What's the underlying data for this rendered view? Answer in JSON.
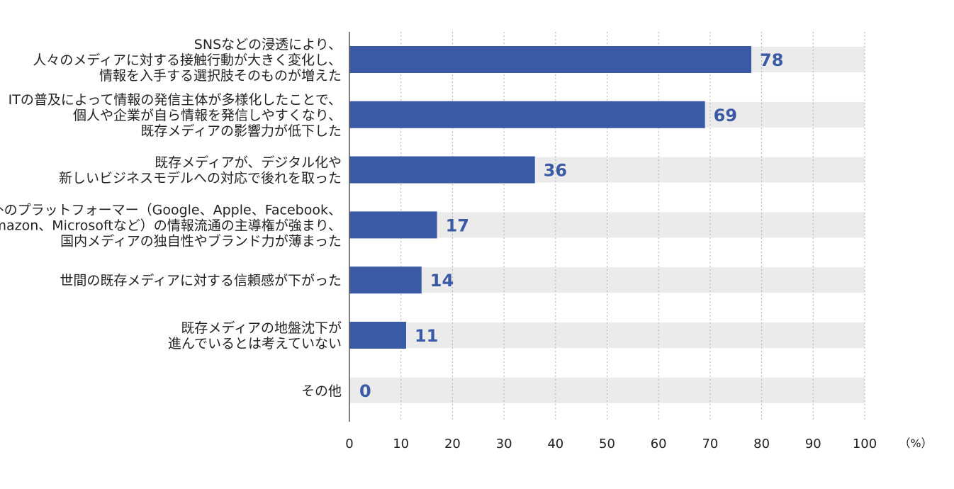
{
  "chart_data": {
    "type": "bar",
    "orientation": "horizontal",
    "categories": [
      [
        "SNSなどの浸透により、",
        "人々のメディアに対する接触行動が大きく変化し、",
        "情報を入手する選択肢そのものが増えた"
      ],
      [
        "ITの普及によって情報の発信主体が多様化したことで、",
        "個人や企業が自ら情報を発信しやすくなり、",
        "既存メディアの影響力が低下した"
      ],
      [
        "既存メディアが、デジタル化や",
        "新しいビジネスモデルへの対応で後れを取った"
      ],
      [
        "海外のプラットフォーマー（Google、Apple、Facebook、",
        "Amazon、Microsoftなど）の情報流通の主導権が強まり、",
        "国内メディアの独自性やブランド力が薄まった"
      ],
      [
        "世間の既存メディアに対する信頼感が下がった"
      ],
      [
        "既存メディアの地盤沈下が",
        "進んでいるとは考えていない"
      ],
      [
        "その他"
      ]
    ],
    "values": [
      78,
      69,
      36,
      17,
      14,
      11,
      0
    ],
    "xlim": [
      0,
      100
    ],
    "xticks": [
      "0",
      "10",
      "20",
      "30",
      "40",
      "50",
      "60",
      "70",
      "80",
      "90",
      "100"
    ],
    "unit": "（%）",
    "grid": "vertical dotted",
    "colors": {
      "bar": "#3a5aa5",
      "track": "#ebebeb",
      "value_label": "#3a5aa5",
      "grid": "#b0b0b0",
      "axis": "#555555"
    }
  }
}
